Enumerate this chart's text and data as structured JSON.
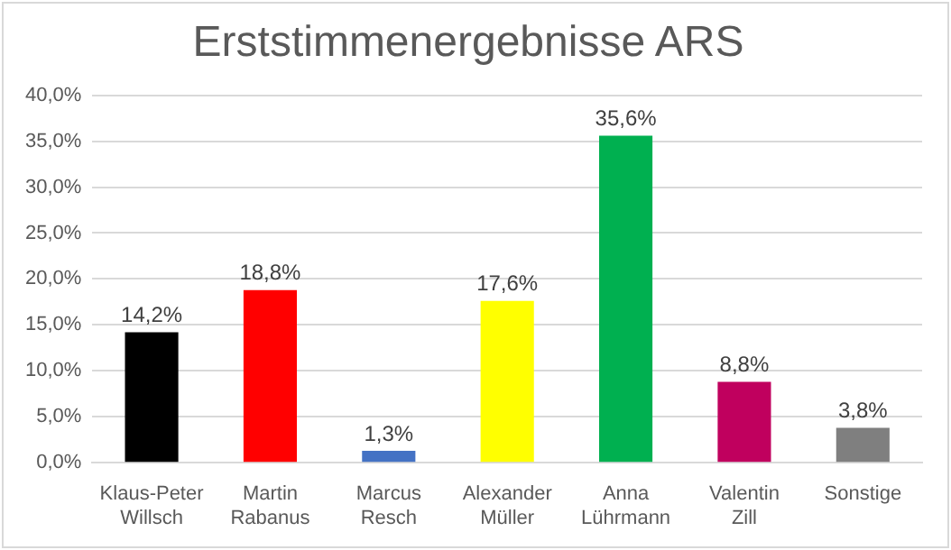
{
  "chart_data": {
    "type": "bar",
    "title": "Erststimmenergebnisse ARS",
    "categories": [
      "Klaus-Peter Willsch",
      "Martin Rabanus",
      "Marcus Resch",
      "Alexander Müller",
      "Anna Lührmann",
      "Valentin Zill",
      "Sonstige"
    ],
    "values": [
      14.2,
      18.8,
      1.3,
      17.6,
      35.6,
      8.8,
      3.8
    ],
    "colors": [
      "#000000",
      "#ff0000",
      "#4472c4",
      "#ffff00",
      "#00b050",
      "#c0005e",
      "#7f7f7f"
    ],
    "value_labels": [
      "14,2%",
      "18,8%",
      "1,3%",
      "17,6%",
      "35,6%",
      "8,8%",
      "3,8%"
    ],
    "ylim": [
      0,
      40
    ],
    "yticks": [
      {
        "value": 0,
        "label": "0,0%"
      },
      {
        "value": 5,
        "label": "5,0%"
      },
      {
        "value": 10,
        "label": "10,0%"
      },
      {
        "value": 15,
        "label": "15,0%"
      },
      {
        "value": 20,
        "label": "20,0%"
      },
      {
        "value": 25,
        "label": "25,0%"
      },
      {
        "value": 30,
        "label": "30,0%"
      },
      {
        "value": 35,
        "label": "35,0%"
      },
      {
        "value": 40,
        "label": "40,0%"
      }
    ],
    "grid": "y",
    "legend": false
  }
}
